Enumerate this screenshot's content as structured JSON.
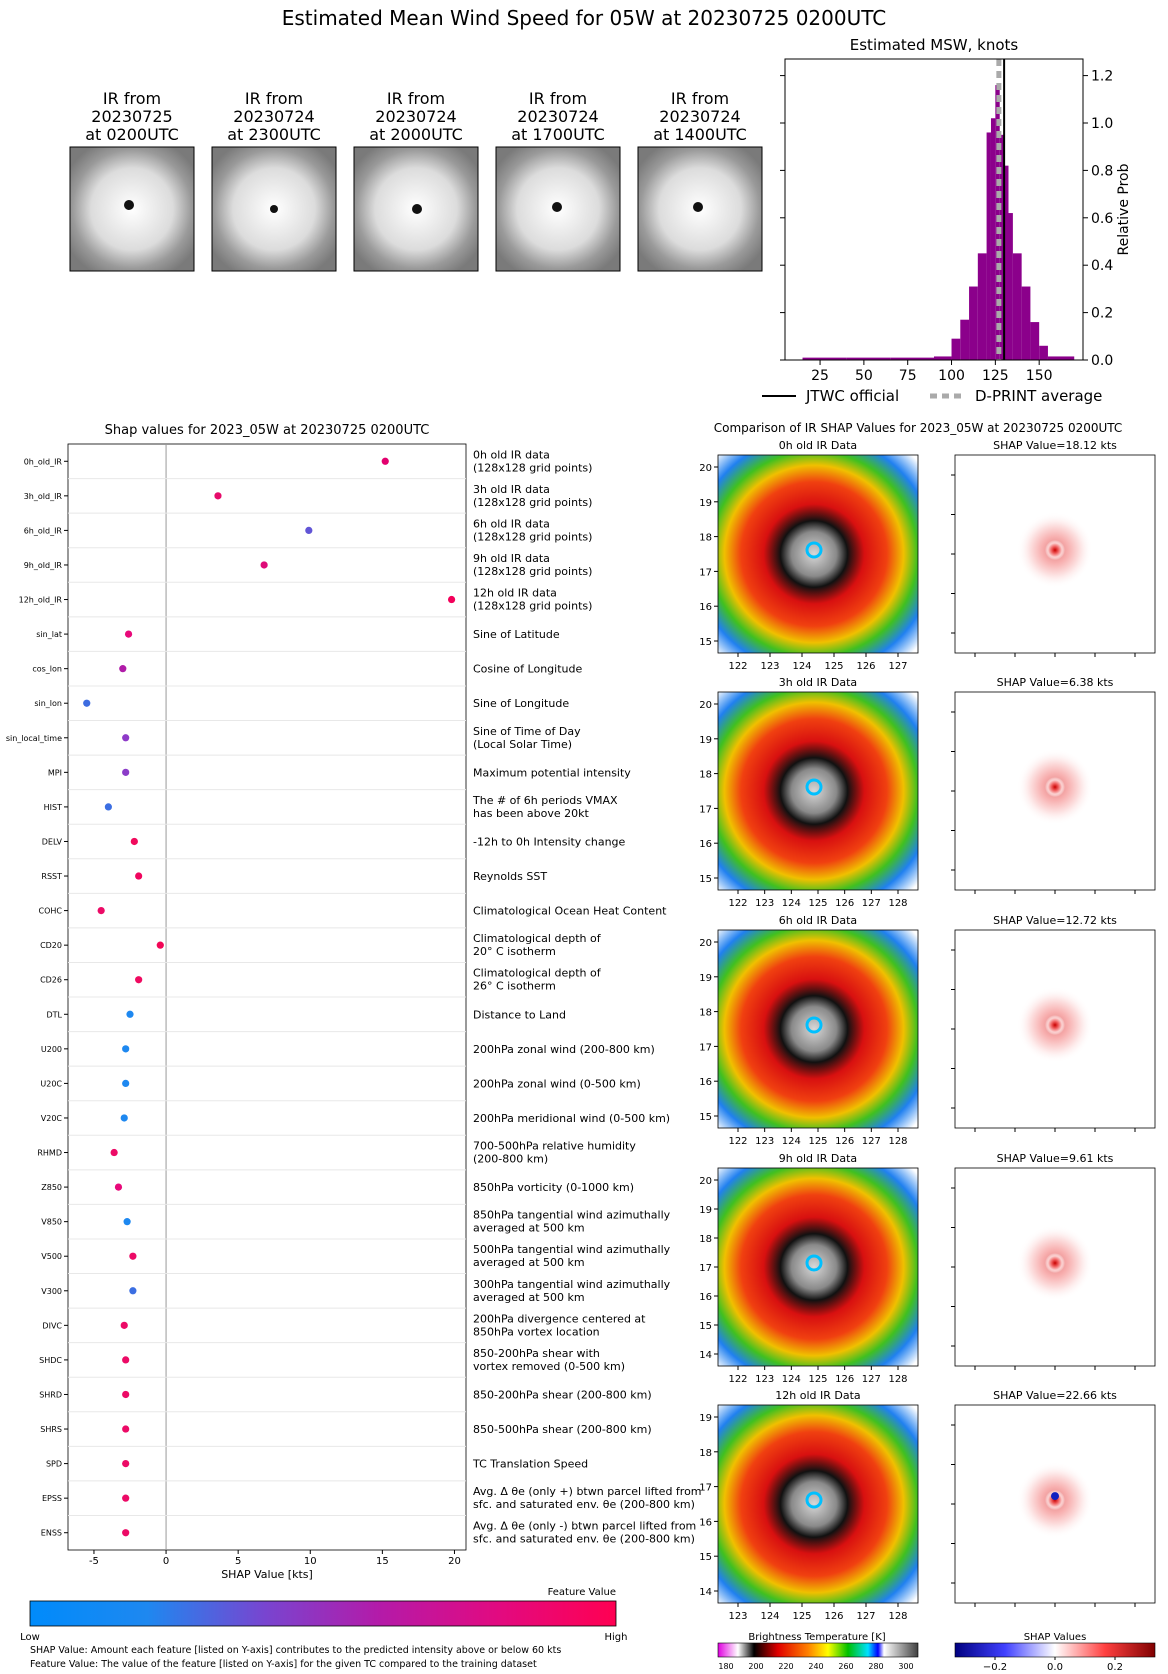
{
  "main_title": "Estimated Mean Wind Speed for 05W at 20230725 0200UTC",
  "ir_panels": [
    {
      "line1": "IR from",
      "line2": "20230725",
      "line3": "at 0200UTC"
    },
    {
      "line1": "IR from",
      "line2": "20230724",
      "line3": "at 2300UTC"
    },
    {
      "line1": "IR from",
      "line2": "20230724",
      "line3": "at 2000UTC"
    },
    {
      "line1": "IR from",
      "line2": "20230724",
      "line3": "at 1700UTC"
    },
    {
      "line1": "IR from",
      "line2": "20230724",
      "line3": "at 1400UTC"
    }
  ],
  "chart_data": [
    {
      "type": "bar",
      "title": "Estimated MSW, knots",
      "ylabel": "Relative Prob",
      "xlim": [
        5,
        175
      ],
      "ylim": [
        0,
        1.27
      ],
      "xticks": [
        25,
        50,
        75,
        100,
        125,
        150
      ],
      "yticks": [
        0.0,
        0.2,
        0.4,
        0.6,
        0.8,
        1.0,
        1.2
      ],
      "bar_color": "#8b008b",
      "bins": [
        {
          "x0": 15,
          "x1": 40,
          "y": 0.01
        },
        {
          "x0": 40,
          "x1": 65,
          "y": 0.01
        },
        {
          "x0": 65,
          "x1": 90,
          "y": 0.01
        },
        {
          "x0": 90,
          "x1": 100,
          "y": 0.015
        },
        {
          "x0": 100,
          "x1": 105,
          "y": 0.09
        },
        {
          "x0": 105,
          "x1": 110,
          "y": 0.17
        },
        {
          "x0": 110,
          "x1": 115,
          "y": 0.31
        },
        {
          "x0": 115,
          "x1": 120,
          "y": 0.45
        },
        {
          "x0": 120,
          "x1": 122.5,
          "y": 0.96
        },
        {
          "x0": 122.5,
          "x1": 125,
          "y": 1.02
        },
        {
          "x0": 125,
          "x1": 127.5,
          "y": 1.16
        },
        {
          "x0": 127.5,
          "x1": 130,
          "y": 0.95
        },
        {
          "x0": 130,
          "x1": 132.5,
          "y": 0.82
        },
        {
          "x0": 132.5,
          "x1": 135,
          "y": 0.62
        },
        {
          "x0": 135,
          "x1": 140,
          "y": 0.45
        },
        {
          "x0": 140,
          "x1": 145,
          "y": 0.31
        },
        {
          "x0": 145,
          "x1": 150,
          "y": 0.16
        },
        {
          "x0": 150,
          "x1": 155,
          "y": 0.06
        },
        {
          "x0": 155,
          "x1": 170,
          "y": 0.015
        }
      ],
      "jtwc_official": 130,
      "dprint_average": 127,
      "legend": [
        {
          "label": "JTWC official",
          "color": "#000000"
        },
        {
          "label": "D-PRINT average",
          "color": "#aaaaaa"
        }
      ]
    },
    {
      "type": "scatter",
      "title": "Shap values for 2023_05W at 20230725 0200UTC",
      "xlabel": "SHAP Value [kts]",
      "xlim": [
        -6.8,
        20.8
      ],
      "xticks": [
        -5,
        0,
        5,
        10,
        15,
        20
      ],
      "features": [
        {
          "name": "0h_old_IR",
          "desc1": "0h old IR data",
          "desc2": "(128x128 grid points)",
          "shap": 15.2,
          "color": "#e2006e"
        },
        {
          "name": "3h_old_IR",
          "desc1": "3h old IR data",
          "desc2": "(128x128 grid points)",
          "shap": 3.6,
          "color": "#e60b6a"
        },
        {
          "name": "6h_old_IR",
          "desc1": "6h old IR data",
          "desc2": "(128x128 grid points)",
          "shap": 9.9,
          "color": "#6155d6"
        },
        {
          "name": "9h_old_IR",
          "desc1": "9h old IR data",
          "desc2": "(128x128 grid points)",
          "shap": 6.8,
          "color": "#de0a78"
        },
        {
          "name": "12h_old_IR",
          "desc1": "12h old IR data",
          "desc2": "(128x128 grid points)",
          "shap": 19.8,
          "color": "#f3005a"
        },
        {
          "name": "sin_lat",
          "desc1": "Sine of Latitude",
          "desc2": "",
          "shap": -2.6,
          "color": "#e8097a"
        },
        {
          "name": "cos_lon",
          "desc1": "Cosine of Longitude",
          "desc2": "",
          "shap": -3.0,
          "color": "#b01ba8"
        },
        {
          "name": "sin_lon",
          "desc1": "Sine of Longitude",
          "desc2": "",
          "shap": -5.5,
          "color": "#3d6ce0"
        },
        {
          "name": "sin_local_time",
          "desc1": "Sine of Time of Day",
          "desc2": "(Local Solar Time)",
          "shap": -2.8,
          "color": "#8e3ac8"
        },
        {
          "name": "MPI",
          "desc1": "Maximum potential intensity",
          "desc2": "",
          "shap": -2.8,
          "color": "#8b3cc8"
        },
        {
          "name": "HIST",
          "desc1": "The # of 6h periods VMAX",
          "desc2": "has been above 20kt",
          "shap": -4.0,
          "color": "#3b6ee2"
        },
        {
          "name": "DELV",
          "desc1": "-12h to 0h Intensity change",
          "desc2": "",
          "shap": -2.2,
          "color": "#f00a5c"
        },
        {
          "name": "RSST",
          "desc1": "Reynolds SST",
          "desc2": "",
          "shap": -1.9,
          "color": "#f0055e"
        },
        {
          "name": "COHC",
          "desc1": "Climatological Ocean Heat Content",
          "desc2": "",
          "shap": -4.5,
          "color": "#ec0a66"
        },
        {
          "name": "CD20",
          "desc1": "Climatological depth of",
          "desc2": "20° C isotherm",
          "shap": -0.4,
          "color": "#f20656"
        },
        {
          "name": "CD26",
          "desc1": "Climatological depth of",
          "desc2": "26° C isotherm",
          "shap": -1.9,
          "color": "#ef0a60"
        },
        {
          "name": "DTL",
          "desc1": "Distance to Land",
          "desc2": "",
          "shap": -2.5,
          "color": "#1e88f0"
        },
        {
          "name": "U200",
          "desc1": "200hPa zonal wind (200-800 km)",
          "desc2": "",
          "shap": -2.8,
          "color": "#1e88f0"
        },
        {
          "name": "U20C",
          "desc1": "200hPa zonal wind (0-500 km)",
          "desc2": "",
          "shap": -2.8,
          "color": "#1e88f0"
        },
        {
          "name": "V20C",
          "desc1": "200hPa meridional wind (0-500 km)",
          "desc2": "",
          "shap": -2.9,
          "color": "#1e88f0"
        },
        {
          "name": "RHMD",
          "desc1": "700-500hPa relative humidity",
          "desc2": "(200-800 km)",
          "shap": -3.6,
          "color": "#ec0a66"
        },
        {
          "name": "Z850",
          "desc1": "850hPa vorticity (0-1000 km)",
          "desc2": "",
          "shap": -3.3,
          "color": "#e8097a"
        },
        {
          "name": "V850",
          "desc1": "850hPa tangential wind azimuthally",
          "desc2": "averaged at 500 km",
          "shap": -2.7,
          "color": "#1e88f0"
        },
        {
          "name": "V500",
          "desc1": "500hPa tangential wind azimuthally",
          "desc2": "averaged at 500 km",
          "shap": -2.3,
          "color": "#ec0a66"
        },
        {
          "name": "V300",
          "desc1": "300hPa tangential wind azimuthally",
          "desc2": "averaged at 500 km",
          "shap": -2.3,
          "color": "#3b6ee2"
        },
        {
          "name": "DIVC",
          "desc1": "200hPa divergence centered at",
          "desc2": "850hPa vortex location",
          "shap": -2.9,
          "color": "#ec0a66"
        },
        {
          "name": "SHDC",
          "desc1": "850-200hPa shear with",
          "desc2": "vortex removed (0-500 km)",
          "shap": -2.8,
          "color": "#ec0a66"
        },
        {
          "name": "SHRD",
          "desc1": "850-200hPa shear (200-800 km)",
          "desc2": "",
          "shap": -2.8,
          "color": "#ec0a66"
        },
        {
          "name": "SHRS",
          "desc1": "850-500hPa shear (200-800 km)",
          "desc2": "",
          "shap": -2.8,
          "color": "#ec0a66"
        },
        {
          "name": "SPD",
          "desc1": "TC Translation Speed",
          "desc2": "",
          "shap": -2.8,
          "color": "#ec0a66"
        },
        {
          "name": "EPSS",
          "desc1": "Avg. Δ θe (only +) btwn parcel lifted from",
          "desc2": "sfc. and saturated env. θe (200-800 km)",
          "shap": -2.8,
          "color": "#ec0a66"
        },
        {
          "name": "ENSS",
          "desc1": "Avg. Δ θe (only -) btwn parcel lifted from",
          "desc2": "sfc. and saturated env. θe (200-800 km)",
          "shap": -2.8,
          "color": "#ec0a66"
        }
      ]
    }
  ],
  "feature_colorbar": {
    "title": "Feature Value",
    "low": "Low",
    "high": "High"
  },
  "footnotes": [
    "SHAP Value: Amount each feature [listed on Y-axis] contributes to the predicted intensity above or below 60 kts",
    "Feature Value: The value of the feature [listed on Y-axis] for the given TC compared to the training dataset"
  ],
  "comparison": {
    "title": "Comparison of IR SHAP Values for 2023_05W at 20230725 0200UTC",
    "rows": [
      {
        "ir_title": "0h old IR Data",
        "shap_title": "SHAP Value=18.12 kts",
        "yticks": [
          "20",
          "19",
          "18",
          "17",
          "16",
          "15"
        ],
        "xticks": [
          "122",
          "123",
          "124",
          "125",
          "126",
          "127"
        ]
      },
      {
        "ir_title": "3h old IR Data",
        "shap_title": "SHAP Value=6.38 kts",
        "yticks": [
          "20",
          "19",
          "18",
          "17",
          "16",
          "15"
        ],
        "xticks": [
          "122",
          "123",
          "124",
          "125",
          "126",
          "127",
          "128"
        ]
      },
      {
        "ir_title": "6h old IR Data",
        "shap_title": "SHAP Value=12.72 kts",
        "yticks": [
          "20",
          "19",
          "18",
          "17",
          "16",
          "15"
        ],
        "xticks": [
          "122",
          "123",
          "124",
          "125",
          "126",
          "127",
          "128"
        ]
      },
      {
        "ir_title": "9h old IR Data",
        "shap_title": "SHAP Value=9.61 kts",
        "yticks": [
          "20",
          "19",
          "18",
          "17",
          "16",
          "15",
          "14"
        ],
        "xticks": [
          "122",
          "123",
          "124",
          "125",
          "126",
          "127",
          "128"
        ]
      },
      {
        "ir_title": "12h old IR Data",
        "shap_title": "SHAP Value=22.66 kts",
        "yticks": [
          "19",
          "18",
          "17",
          "16",
          "15",
          "14"
        ],
        "xticks": [
          "123",
          "124",
          "125",
          "126",
          "127",
          "128"
        ]
      }
    ],
    "bt_colorbar": {
      "title": "Brightness Temperature [K]",
      "ticks": [
        "180",
        "200",
        "220",
        "240",
        "260",
        "280",
        "300"
      ]
    },
    "shap_colorbar": {
      "title": "SHAP Values",
      "ticks": [
        "−0.2",
        "0.0",
        "0.2"
      ]
    }
  }
}
